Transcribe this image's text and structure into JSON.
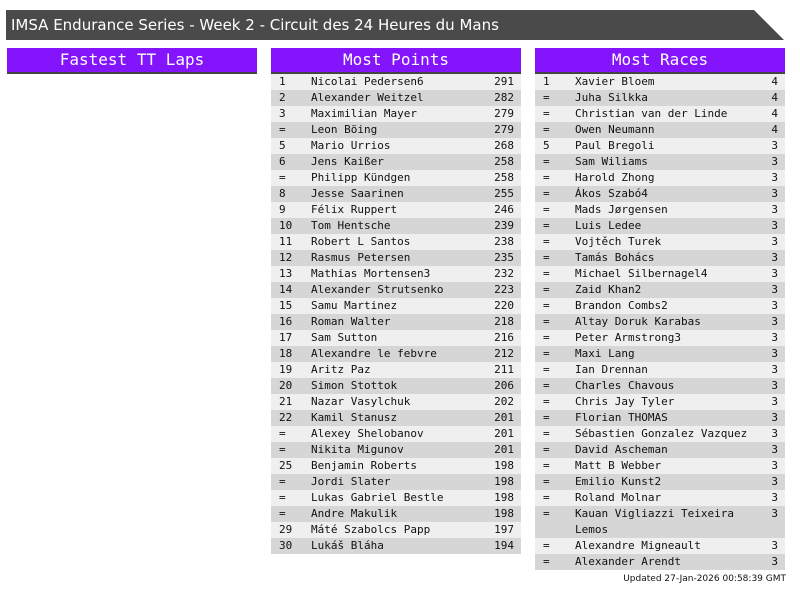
{
  "title": "IMSA Endurance Series - Week 2 - Circuit des 24 Heures du Mans",
  "colors": {
    "header": "#8314fb",
    "titlebar": "#4a4a4a"
  },
  "columns": [
    {
      "title": "Fastest TT Laps",
      "rows": []
    },
    {
      "title": "Most Points",
      "rows": [
        [
          "1",
          "Nicolai Pedersen6",
          "291"
        ],
        [
          "2",
          "Alexander Weitzel",
          "282"
        ],
        [
          "3",
          "Maximilian Mayer",
          "279"
        ],
        [
          "=",
          "Leon Böing",
          "279"
        ],
        [
          "5",
          "Mario Urrios",
          "268"
        ],
        [
          "6",
          "Jens Kaißer",
          "258"
        ],
        [
          "=",
          "Philipp Kündgen",
          "258"
        ],
        [
          "8",
          "Jesse Saarinen",
          "255"
        ],
        [
          "9",
          "Félix Ruppert",
          "246"
        ],
        [
          "10",
          "Tom Hentsche",
          "239"
        ],
        [
          "11",
          "Robert L Santos",
          "238"
        ],
        [
          "12",
          "Rasmus Petersen",
          "235"
        ],
        [
          "13",
          "Mathias Mortensen3",
          "232"
        ],
        [
          "14",
          "Alexander Strutsenko",
          "223"
        ],
        [
          "15",
          "Samu Martinez",
          "220"
        ],
        [
          "16",
          "Roman Walter",
          "218"
        ],
        [
          "17",
          "Sam Sutton",
          "216"
        ],
        [
          "18",
          "Alexandre le febvre",
          "212"
        ],
        [
          "19",
          "Aritz Paz",
          "211"
        ],
        [
          "20",
          "Simon Stottok",
          "206"
        ],
        [
          "21",
          "Nazar Vasylchuk",
          "202"
        ],
        [
          "22",
          "Kamil Stanusz",
          "201"
        ],
        [
          "=",
          "Alexey Shelobanov",
          "201"
        ],
        [
          "=",
          "Nikita Migunov",
          "201"
        ],
        [
          "25",
          "Benjamin Roberts",
          "198"
        ],
        [
          "=",
          "Jordi Slater",
          "198"
        ],
        [
          "=",
          "Lukas Gabriel Bestle",
          "198"
        ],
        [
          "=",
          "Andre Makulik",
          "198"
        ],
        [
          "29",
          "Máté Szabolcs Papp",
          "197"
        ],
        [
          "30",
          "Lukáš Bláha",
          "194"
        ]
      ]
    },
    {
      "title": "Most Races",
      "rows": [
        [
          "1",
          "Xavier Bloem",
          "4"
        ],
        [
          "=",
          "Juha Silkka",
          "4"
        ],
        [
          "=",
          "Christian van der Linde",
          "4"
        ],
        [
          "=",
          "Owen Neumann",
          "4"
        ],
        [
          "5",
          "Paul Bregoli",
          "3"
        ],
        [
          "=",
          "Sam Wiliams",
          "3"
        ],
        [
          "=",
          "Harold Zhong",
          "3"
        ],
        [
          "=",
          "Ákos Szabó4",
          "3"
        ],
        [
          "=",
          "Mads Jørgensen",
          "3"
        ],
        [
          "=",
          "Luis Ledee",
          "3"
        ],
        [
          "=",
          "Vojtěch Turek",
          "3"
        ],
        [
          "=",
          "Tamás Bohács",
          "3"
        ],
        [
          "=",
          "Michael Silbernagel4",
          "3"
        ],
        [
          "=",
          "Zaid Khan2",
          "3"
        ],
        [
          "=",
          "Brandon Combs2",
          "3"
        ],
        [
          "=",
          "Altay Doruk Karabas",
          "3"
        ],
        [
          "=",
          "Peter Armstrong3",
          "3"
        ],
        [
          "=",
          "Maxi Lang",
          "3"
        ],
        [
          "=",
          "Ian Drennan",
          "3"
        ],
        [
          "=",
          "Charles Chavous",
          "3"
        ],
        [
          "=",
          "Chris Jay Tyler",
          "3"
        ],
        [
          "=",
          "Florian THOMAS",
          "3"
        ],
        [
          "=",
          "Sébastien Gonzalez Vazquez",
          "3"
        ],
        [
          "=",
          "David Ascheman",
          "3"
        ],
        [
          "=",
          "Matt B Webber",
          "3"
        ],
        [
          "=",
          "Emilio Kunst2",
          "3"
        ],
        [
          "=",
          "Roland Molnar",
          "3"
        ],
        [
          "=",
          "Kauan Vigliazzi Teixeira Lemos",
          "3"
        ],
        [
          "=",
          "Alexandre Migneault",
          "3"
        ],
        [
          "=",
          "Alexander Arendt",
          "3"
        ]
      ]
    }
  ],
  "updated": "Updated 27-Jan-2026 00:58:39 GMT"
}
